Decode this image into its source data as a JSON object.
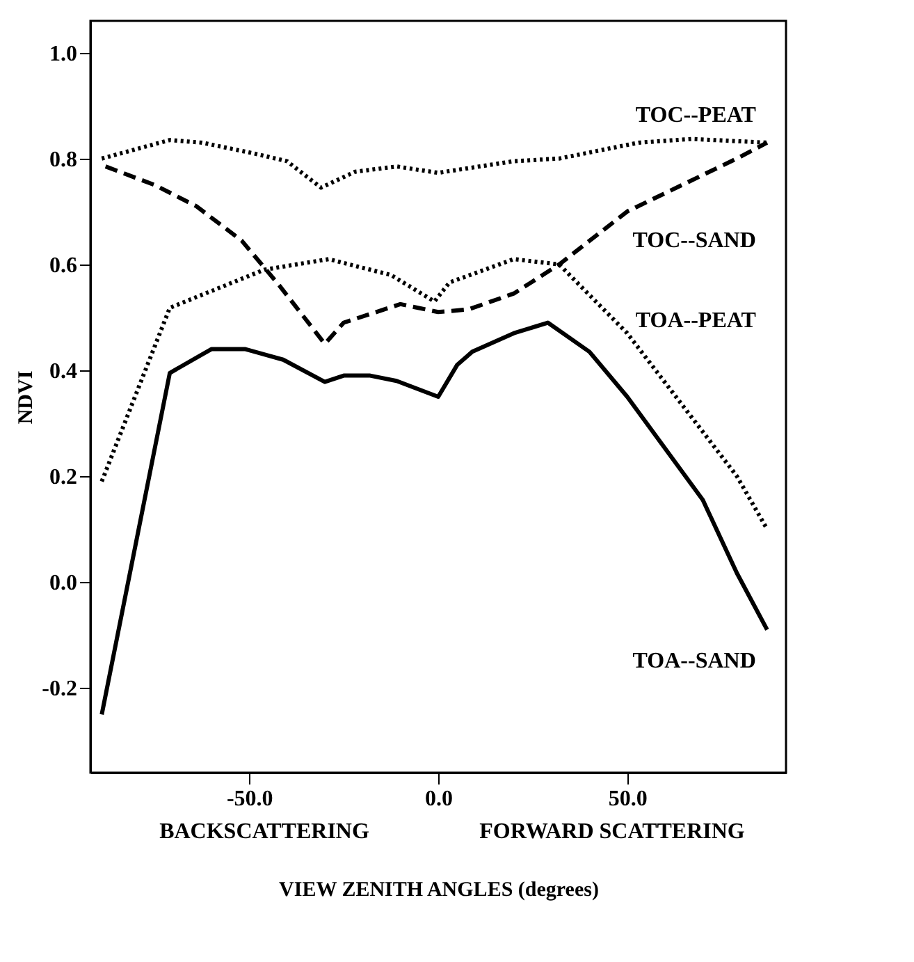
{
  "chart_data": {
    "type": "line",
    "xlabel": "VIEW ZENITH ANGLES (degrees)",
    "ylabel": "NDVI",
    "xlim": [
      -92,
      92
    ],
    "ylim": [
      -0.36,
      1.06
    ],
    "xticks": [
      {
        "value": -50,
        "label": "-50.0"
      },
      {
        "value": 0,
        "label": "0.0"
      },
      {
        "value": 50,
        "label": "50.0"
      }
    ],
    "yticks": [
      {
        "value": -0.2,
        "label": "-0.2"
      },
      {
        "value": 0,
        "label": "0.0"
      },
      {
        "value": 0.2,
        "label": "0.2"
      },
      {
        "value": 0.4,
        "label": "0.4"
      },
      {
        "value": 0.6,
        "label": "0.6"
      },
      {
        "value": 0.8,
        "label": "0.8"
      },
      {
        "value": 1.0,
        "label": "1.0"
      }
    ],
    "grid": false,
    "series": [
      {
        "name": "TOC--PEAT",
        "color": "#000000",
        "line_style": "dotted",
        "x": [
          -89,
          -71,
          -62.5,
          -49,
          -40,
          -31,
          -22,
          -11,
          0,
          20,
          32,
          53,
          67,
          87
        ],
        "values": [
          0.8,
          0.835,
          0.83,
          0.81,
          0.795,
          0.745,
          0.775,
          0.785,
          0.773,
          0.795,
          0.8,
          0.83,
          0.837,
          0.83
        ]
      },
      {
        "name": "TOC--SAND",
        "color": "#000000",
        "line_style": "dashed",
        "x": [
          -88,
          -75,
          -64,
          -52,
          -42,
          -30,
          -25,
          -10,
          0,
          8,
          20,
          32,
          50,
          79,
          87
        ],
        "values": [
          0.785,
          0.75,
          0.71,
          0.645,
          0.56,
          0.45,
          0.49,
          0.525,
          0.51,
          0.515,
          0.545,
          0.6,
          0.7,
          0.8,
          0.83
        ]
      },
      {
        "name": "TOA--PEAT",
        "color": "#000000",
        "line_style": "dotted",
        "x": [
          -89,
          -71,
          -46,
          -29,
          -12.5,
          -1,
          3,
          20,
          32,
          50,
          79,
          87
        ],
        "values": [
          0.19,
          0.518,
          0.59,
          0.61,
          0.58,
          0.53,
          0.566,
          0.61,
          0.6,
          0.47,
          0.2,
          0.1
        ]
      },
      {
        "name": "TOA--SAND",
        "color": "#000000",
        "line_style": "solid",
        "x": [
          -89,
          -71,
          -60,
          -51,
          -41,
          -30,
          -25,
          -18,
          -11,
          0,
          5,
          9,
          20,
          29,
          40,
          50,
          70,
          79,
          87
        ],
        "values": [
          -0.25,
          0.395,
          0.44,
          0.44,
          0.42,
          0.378,
          0.39,
          0.39,
          0.38,
          0.35,
          0.41,
          0.435,
          0.47,
          0.49,
          0.435,
          0.35,
          0.155,
          0.017,
          -0.09
        ]
      }
    ],
    "annotations": [
      "BACKSCATTERING",
      "FORWARD SCATTERING"
    ]
  }
}
